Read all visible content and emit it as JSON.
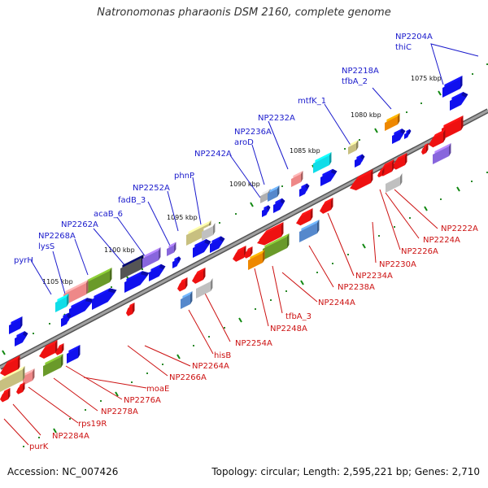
{
  "title": "Natronomonas pharaonis DSM 2160, complete genome",
  "footer": {
    "accession": "Accession: NC_007426",
    "summary": "Topology: circular; Length: 2,595,221 bp; Genes: 2,710"
  },
  "colors": {
    "backbone": "#808080",
    "forward_label": "#1a1acc",
    "reverse_label": "#cc1111",
    "tick": "#118811",
    "gene_blue": "#1010ee",
    "gene_red": "#ee1111"
  },
  "ticks": [
    "1075 kbp",
    "1080 kbp",
    "1085 kbp",
    "1090 kbp",
    "1095 kbp",
    "1100 kbp",
    "1105 kbp"
  ],
  "forward_labels": [
    {
      "lines": [
        "NP2204A",
        "thiC"
      ]
    },
    {
      "lines": [
        "NP2218A",
        "tfbA_2"
      ]
    },
    {
      "lines": [
        "mtfK_1"
      ]
    },
    {
      "lines": [
        "NP2232A"
      ]
    },
    {
      "lines": [
        "NP2236A",
        "aroD"
      ]
    },
    {
      "lines": [
        "NP2242A"
      ]
    },
    {
      "lines": [
        "phnP"
      ]
    },
    {
      "lines": [
        "NP2252A"
      ]
    },
    {
      "lines": [
        "fadB_3"
      ]
    },
    {
      "lines": [
        "acaB_6"
      ]
    },
    {
      "lines": [
        "NP2262A"
      ]
    },
    {
      "lines": [
        "NP2268A",
        "lysS"
      ]
    },
    {
      "lines": [
        "pyrH"
      ]
    }
  ],
  "reverse_labels": [
    {
      "text": "NP2222A"
    },
    {
      "text": "NP2224A"
    },
    {
      "text": "NP2226A"
    },
    {
      "text": "NP2230A"
    },
    {
      "text": "NP2234A"
    },
    {
      "text": "NP2238A"
    },
    {
      "text": "NP2244A"
    },
    {
      "text": "tfbA_3"
    },
    {
      "text": "NP2248A"
    },
    {
      "text": "NP2254A"
    },
    {
      "text": "hisB"
    },
    {
      "text": "NP2264A"
    },
    {
      "text": "NP2266A"
    },
    {
      "text": "moaE"
    },
    {
      "text": "NP2276A"
    },
    {
      "text": "NP2278A"
    },
    {
      "text": "rps19R"
    },
    {
      "text": "NP2284A"
    },
    {
      "text": "purK"
    }
  ]
}
